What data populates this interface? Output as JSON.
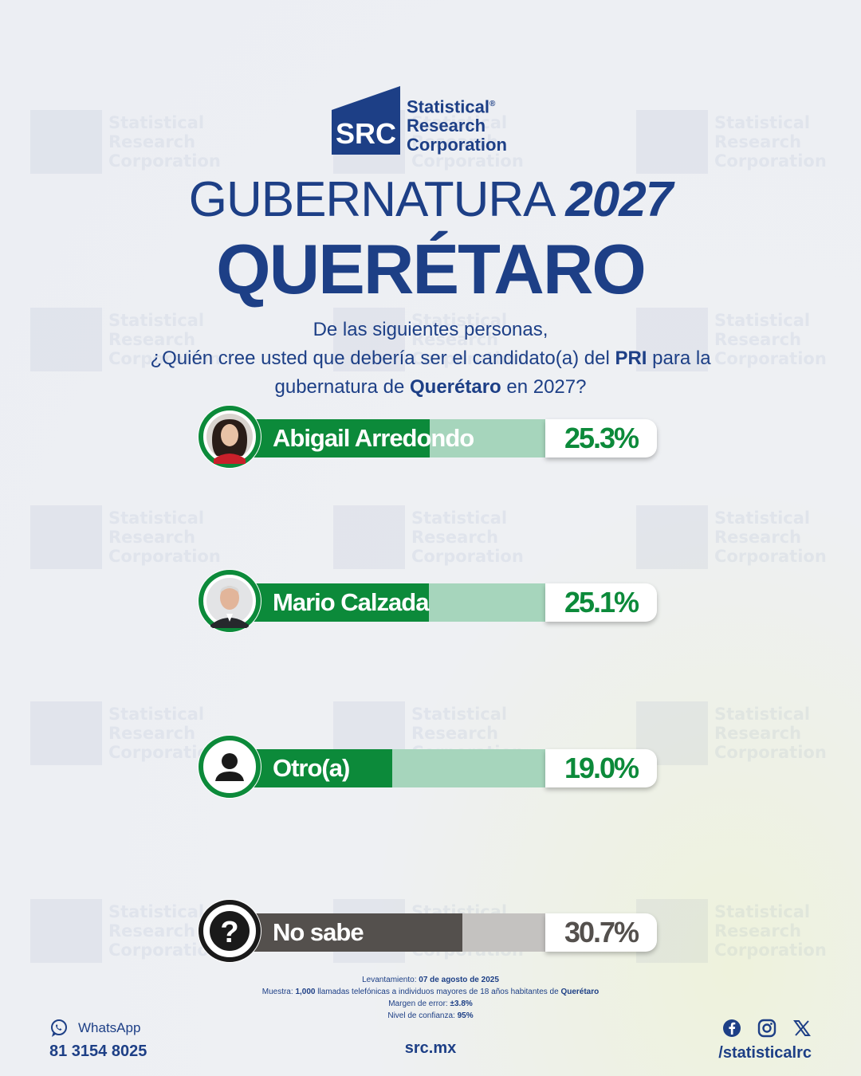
{
  "brand": {
    "logo_initials": "SRC",
    "logo_line1": "Statistical",
    "logo_line2": "Research",
    "logo_line3": "Corporation",
    "registered_mark": "®"
  },
  "title": {
    "line1_light": "GUBERNATURA",
    "line1_bold": "2027",
    "line2": "QUERÉTARO"
  },
  "question": {
    "line1": "De las siguientes personas,",
    "line2_a": "¿Quién cree usted que debería ser el candidato(a) del ",
    "line2_b": "PRI",
    "line2_c": " para la",
    "line3_a": "gubernatura de ",
    "line3_b": "Querétaro",
    "line3_c": " en 2027?"
  },
  "chart_data": {
    "type": "bar",
    "orientation": "horizontal",
    "categories": [
      "Abigail Arredondo",
      "Mario Calzada",
      "Otro(a)",
      "No sabe"
    ],
    "values": [
      25.3,
      25.1,
      19.0,
      30.7
    ],
    "value_labels": [
      "25.3%",
      "25.1%",
      "19.0%",
      "30.7%"
    ],
    "colors": {
      "candidate_fill": "#0c8a3a",
      "candidate_rest": "#a6d5bc",
      "candidate_text": "#0c8a3a",
      "nosabe_fill": "#54504d",
      "nosabe_rest": "#c4c2c0",
      "nosabe_text": "#54504d"
    }
  },
  "methodology": {
    "survey_label": "Levantamiento: ",
    "survey_date": "07 de agosto de 2025",
    "sample_label": "Muestra: ",
    "sample_size": "1,000",
    "sample_desc": " llamadas telefónicas a individuos mayores de 18 años habitantes de ",
    "sample_place": "Querétaro",
    "error_label": "Margen de error: ",
    "error_value": "±3.8%",
    "confidence_label": "Nivel de confianza: ",
    "confidence_value": "95%"
  },
  "footer": {
    "whatsapp_label": "WhatsApp",
    "phone": "81 3154 8025",
    "website": "src.mx",
    "social_handle": "/statisticalrc",
    "social_icons": [
      "facebook-icon",
      "instagram-icon",
      "x-icon"
    ]
  }
}
